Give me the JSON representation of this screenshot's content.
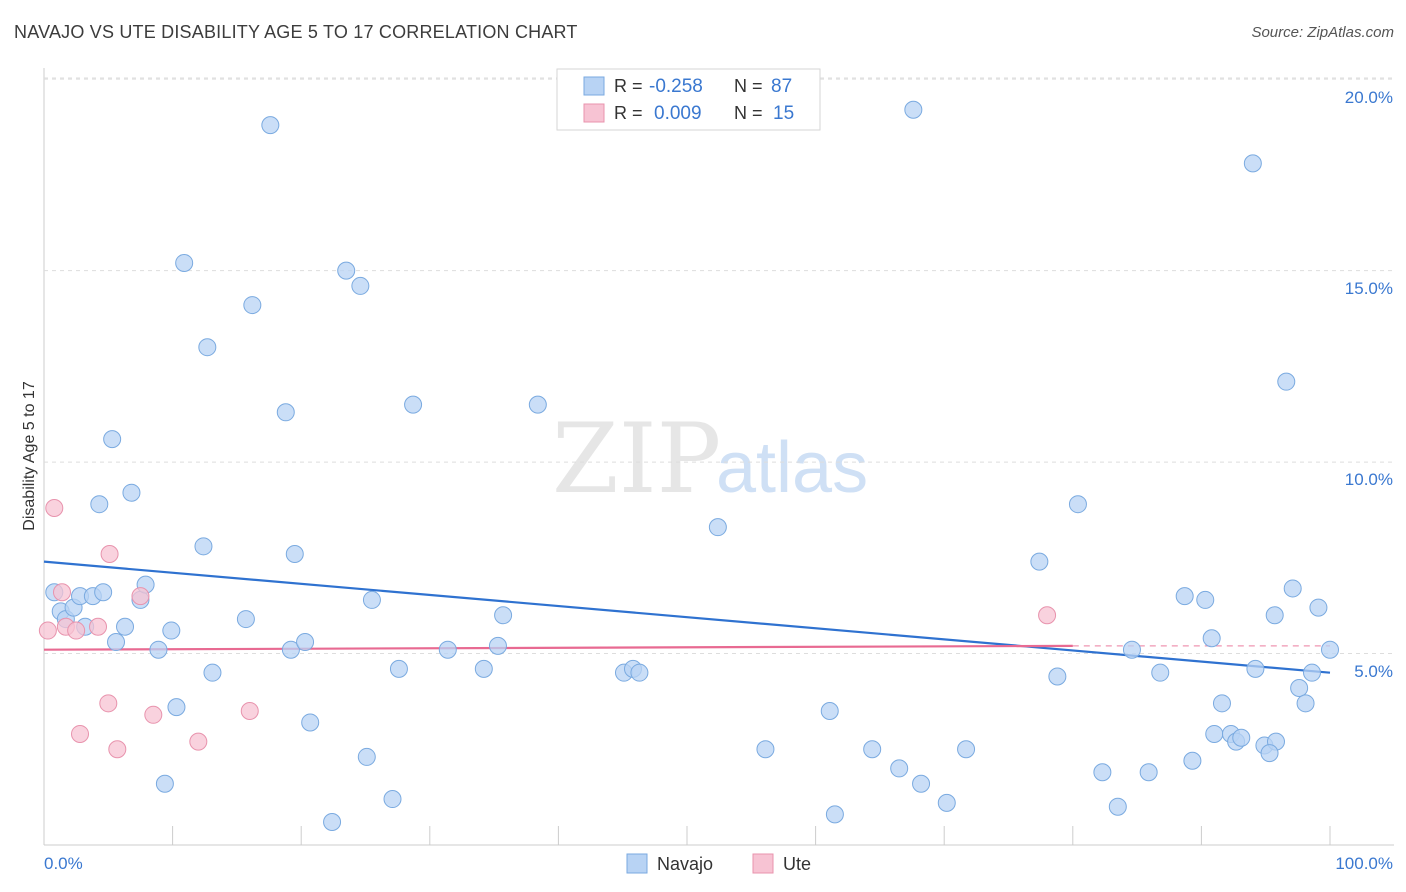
{
  "title": "NAVAJO VS UTE DISABILITY AGE 5 TO 17 CORRELATION CHART",
  "source": "Source: ZipAtlas.com",
  "watermark": {
    "zip": "ZIP",
    "atlas": "atlas"
  },
  "colors": {
    "navajo_fill": "#b8d3f4",
    "navajo_stroke": "#7aaae0",
    "navajo_line": "#2f72d0",
    "ute_fill": "#f7c3d3",
    "ute_stroke": "#e893ad",
    "ute_line": "#e86a92",
    "value_text": "#3a78d0",
    "grid": "#dddddd"
  },
  "legend": {
    "r_label": "R =",
    "n_label": "N =",
    "navajo": {
      "r": "-0.258",
      "n": "87"
    },
    "ute": {
      "r": "0.009",
      "n": "15"
    }
  },
  "chart_data": {
    "type": "scatter",
    "title": "NAVAJO VS UTE DISABILITY AGE 5 TO 17 CORRELATION CHART",
    "xlabel": "",
    "ylabel": "Disability Age 5 to 17",
    "xlim": [
      0,
      100
    ],
    "ylim": [
      0,
      20.5
    ],
    "x_tick_labels": [
      "0.0%",
      "100.0%"
    ],
    "y_ticks": [
      5,
      10,
      15,
      20
    ],
    "y_tick_labels": [
      "5.0%",
      "10.0%",
      "15.0%",
      "20.0%"
    ],
    "grid": true,
    "legend_position": "bottom-center",
    "series": [
      {
        "name": "Navajo",
        "trend": {
          "x": [
            0,
            100
          ],
          "y": [
            7.4,
            4.5
          ],
          "dashed_from": null
        },
        "points": [
          [
            0.8,
            6.6
          ],
          [
            1.3,
            6.1
          ],
          [
            1.7,
            5.9
          ],
          [
            2.3,
            6.2
          ],
          [
            2.8,
            6.5
          ],
          [
            3.2,
            5.7
          ],
          [
            3.8,
            6.5
          ],
          [
            4.3,
            8.9
          ],
          [
            4.6,
            6.6
          ],
          [
            5.3,
            10.6
          ],
          [
            5.6,
            5.3
          ],
          [
            6.3,
            5.7
          ],
          [
            6.8,
            9.2
          ],
          [
            7.5,
            6.4
          ],
          [
            7.9,
            6.8
          ],
          [
            8.9,
            5.1
          ],
          [
            9.4,
            1.6
          ],
          [
            9.9,
            5.6
          ],
          [
            10.3,
            3.6
          ],
          [
            10.9,
            15.2
          ],
          [
            12.4,
            7.8
          ],
          [
            12.7,
            13.0
          ],
          [
            13.1,
            4.5
          ],
          [
            15.7,
            5.9
          ],
          [
            16.2,
            14.1
          ],
          [
            17.6,
            18.8
          ],
          [
            18.8,
            11.3
          ],
          [
            19.2,
            5.1
          ],
          [
            19.5,
            7.6
          ],
          [
            20.3,
            5.3
          ],
          [
            20.7,
            3.2
          ],
          [
            22.4,
            0.6
          ],
          [
            23.5,
            15.0
          ],
          [
            24.6,
            14.6
          ],
          [
            25.1,
            2.3
          ],
          [
            25.5,
            6.4
          ],
          [
            27.1,
            1.2
          ],
          [
            27.6,
            4.6
          ],
          [
            28.7,
            11.5
          ],
          [
            31.4,
            5.1
          ],
          [
            34.2,
            4.6
          ],
          [
            35.3,
            5.2
          ],
          [
            35.7,
            6.0
          ],
          [
            38.4,
            11.5
          ],
          [
            45.1,
            4.5
          ],
          [
            45.8,
            4.6
          ],
          [
            46.3,
            4.5
          ],
          [
            52.4,
            8.3
          ],
          [
            56.1,
            2.5
          ],
          [
            61.1,
            3.5
          ],
          [
            61.5,
            0.8
          ],
          [
            64.4,
            2.5
          ],
          [
            66.5,
            2.0
          ],
          [
            67.6,
            19.2
          ],
          [
            68.2,
            1.6
          ],
          [
            70.2,
            1.1
          ],
          [
            71.7,
            2.5
          ],
          [
            77.4,
            7.4
          ],
          [
            78.8,
            4.4
          ],
          [
            80.4,
            8.9
          ],
          [
            82.3,
            1.9
          ],
          [
            83.5,
            1.0
          ],
          [
            84.6,
            5.1
          ],
          [
            85.9,
            1.9
          ],
          [
            86.8,
            4.5
          ],
          [
            88.7,
            6.5
          ],
          [
            89.3,
            2.2
          ],
          [
            90.3,
            6.4
          ],
          [
            90.8,
            5.4
          ],
          [
            91.0,
            2.9
          ],
          [
            91.6,
            3.7
          ],
          [
            92.3,
            2.9
          ],
          [
            92.7,
            2.7
          ],
          [
            93.1,
            2.8
          ],
          [
            94.2,
            4.6
          ],
          [
            94.9,
            2.6
          ],
          [
            95.8,
            2.7
          ],
          [
            95.3,
            2.4
          ],
          [
            94.0,
            17.8
          ],
          [
            95.7,
            6.0
          ],
          [
            96.6,
            12.1
          ],
          [
            97.1,
            6.7
          ],
          [
            97.6,
            4.1
          ],
          [
            98.1,
            3.7
          ],
          [
            98.6,
            4.5
          ],
          [
            99.1,
            6.2
          ],
          [
            100.0,
            5.1
          ]
        ]
      },
      {
        "name": "Ute",
        "trend": {
          "x": [
            0,
            80
          ],
          "y": [
            5.1,
            5.2
          ],
          "dashed_to": [
            100,
            5.2
          ]
        },
        "points": [
          [
            0.3,
            5.6
          ],
          [
            0.8,
            8.8
          ],
          [
            1.4,
            6.6
          ],
          [
            1.7,
            5.7
          ],
          [
            2.5,
            5.6
          ],
          [
            4.2,
            5.7
          ],
          [
            5.0,
            3.7
          ],
          [
            2.8,
            2.9
          ],
          [
            5.1,
            7.6
          ],
          [
            5.7,
            2.5
          ],
          [
            7.5,
            6.5
          ],
          [
            8.5,
            3.4
          ],
          [
            12.0,
            2.7
          ],
          [
            16.0,
            3.5
          ],
          [
            78.0,
            6.0
          ]
        ]
      }
    ]
  },
  "bottom_legend": {
    "navajo": "Navajo",
    "ute": "Ute"
  }
}
